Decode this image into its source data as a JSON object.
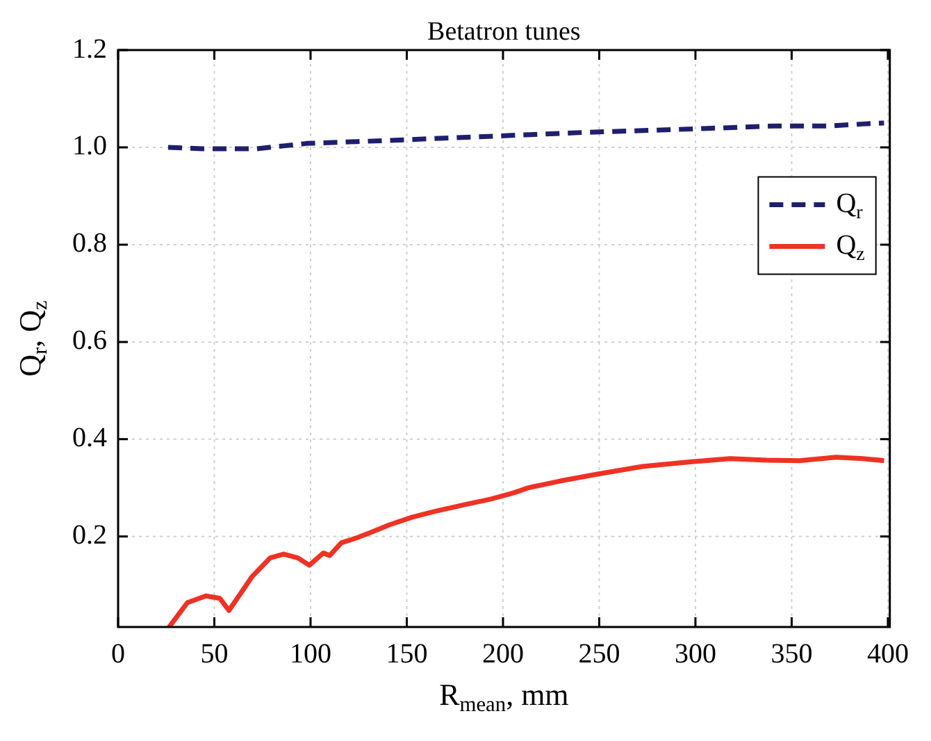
{
  "chart_data": {
    "type": "line",
    "title": "Betatron tunes",
    "xlabel": "R$_{mean}$, mm",
    "ylabel": "Q$_{r}$, Q$_{z}$",
    "xlim": [
      0,
      401
    ],
    "xticks": [
      0,
      50,
      100,
      150,
      200,
      250,
      300,
      350,
      400
    ],
    "ylim": [
      0.014,
      1.2
    ],
    "yticks": [
      0.2,
      0.4,
      0.6,
      0.8,
      {
        "value": 1,
        "label": "1.0"
      },
      1.2
    ],
    "grid": true,
    "legend": "right",
    "series": [
      {
        "name": "Q$_{r}$",
        "color": "#1f1f6e",
        "line_style": "dashed",
        "x": [
          26,
          44,
          72,
          86,
          98,
          146,
          195,
          244,
          300,
          341,
          369,
          387,
          398
        ],
        "values": [
          1.0,
          0.997,
          0.997,
          1.003,
          1.008,
          1.015,
          1.023,
          1.031,
          1.038,
          1.044,
          1.044,
          1.048,
          1.05
        ]
      },
      {
        "name": "Q$_{z}$",
        "color": "#ee3224",
        "line_style": "solid",
        "x": [
          26.5,
          36,
          45.6,
          52.8,
          57.6,
          69.5,
          79,
          86,
          93.4,
          99.4,
          106.6,
          110,
          116,
          124.5,
          131.7,
          141,
          153,
          165,
          179.5,
          193.8,
          205.7,
          213,
          229.6,
          248.7,
          272.6,
          299,
          318,
          337,
          354,
          373,
          387,
          398
        ],
        "values": [
          0.014,
          0.064,
          0.078,
          0.073,
          0.048,
          0.117,
          0.156,
          0.164,
          0.156,
          0.141,
          0.166,
          0.161,
          0.187,
          0.198,
          0.209,
          0.224,
          0.24,
          0.252,
          0.265,
          0.277,
          0.29,
          0.3,
          0.314,
          0.328,
          0.344,
          0.354,
          0.36,
          0.357,
          0.356,
          0.363,
          0.36,
          0.356
        ]
      }
    ]
  }
}
